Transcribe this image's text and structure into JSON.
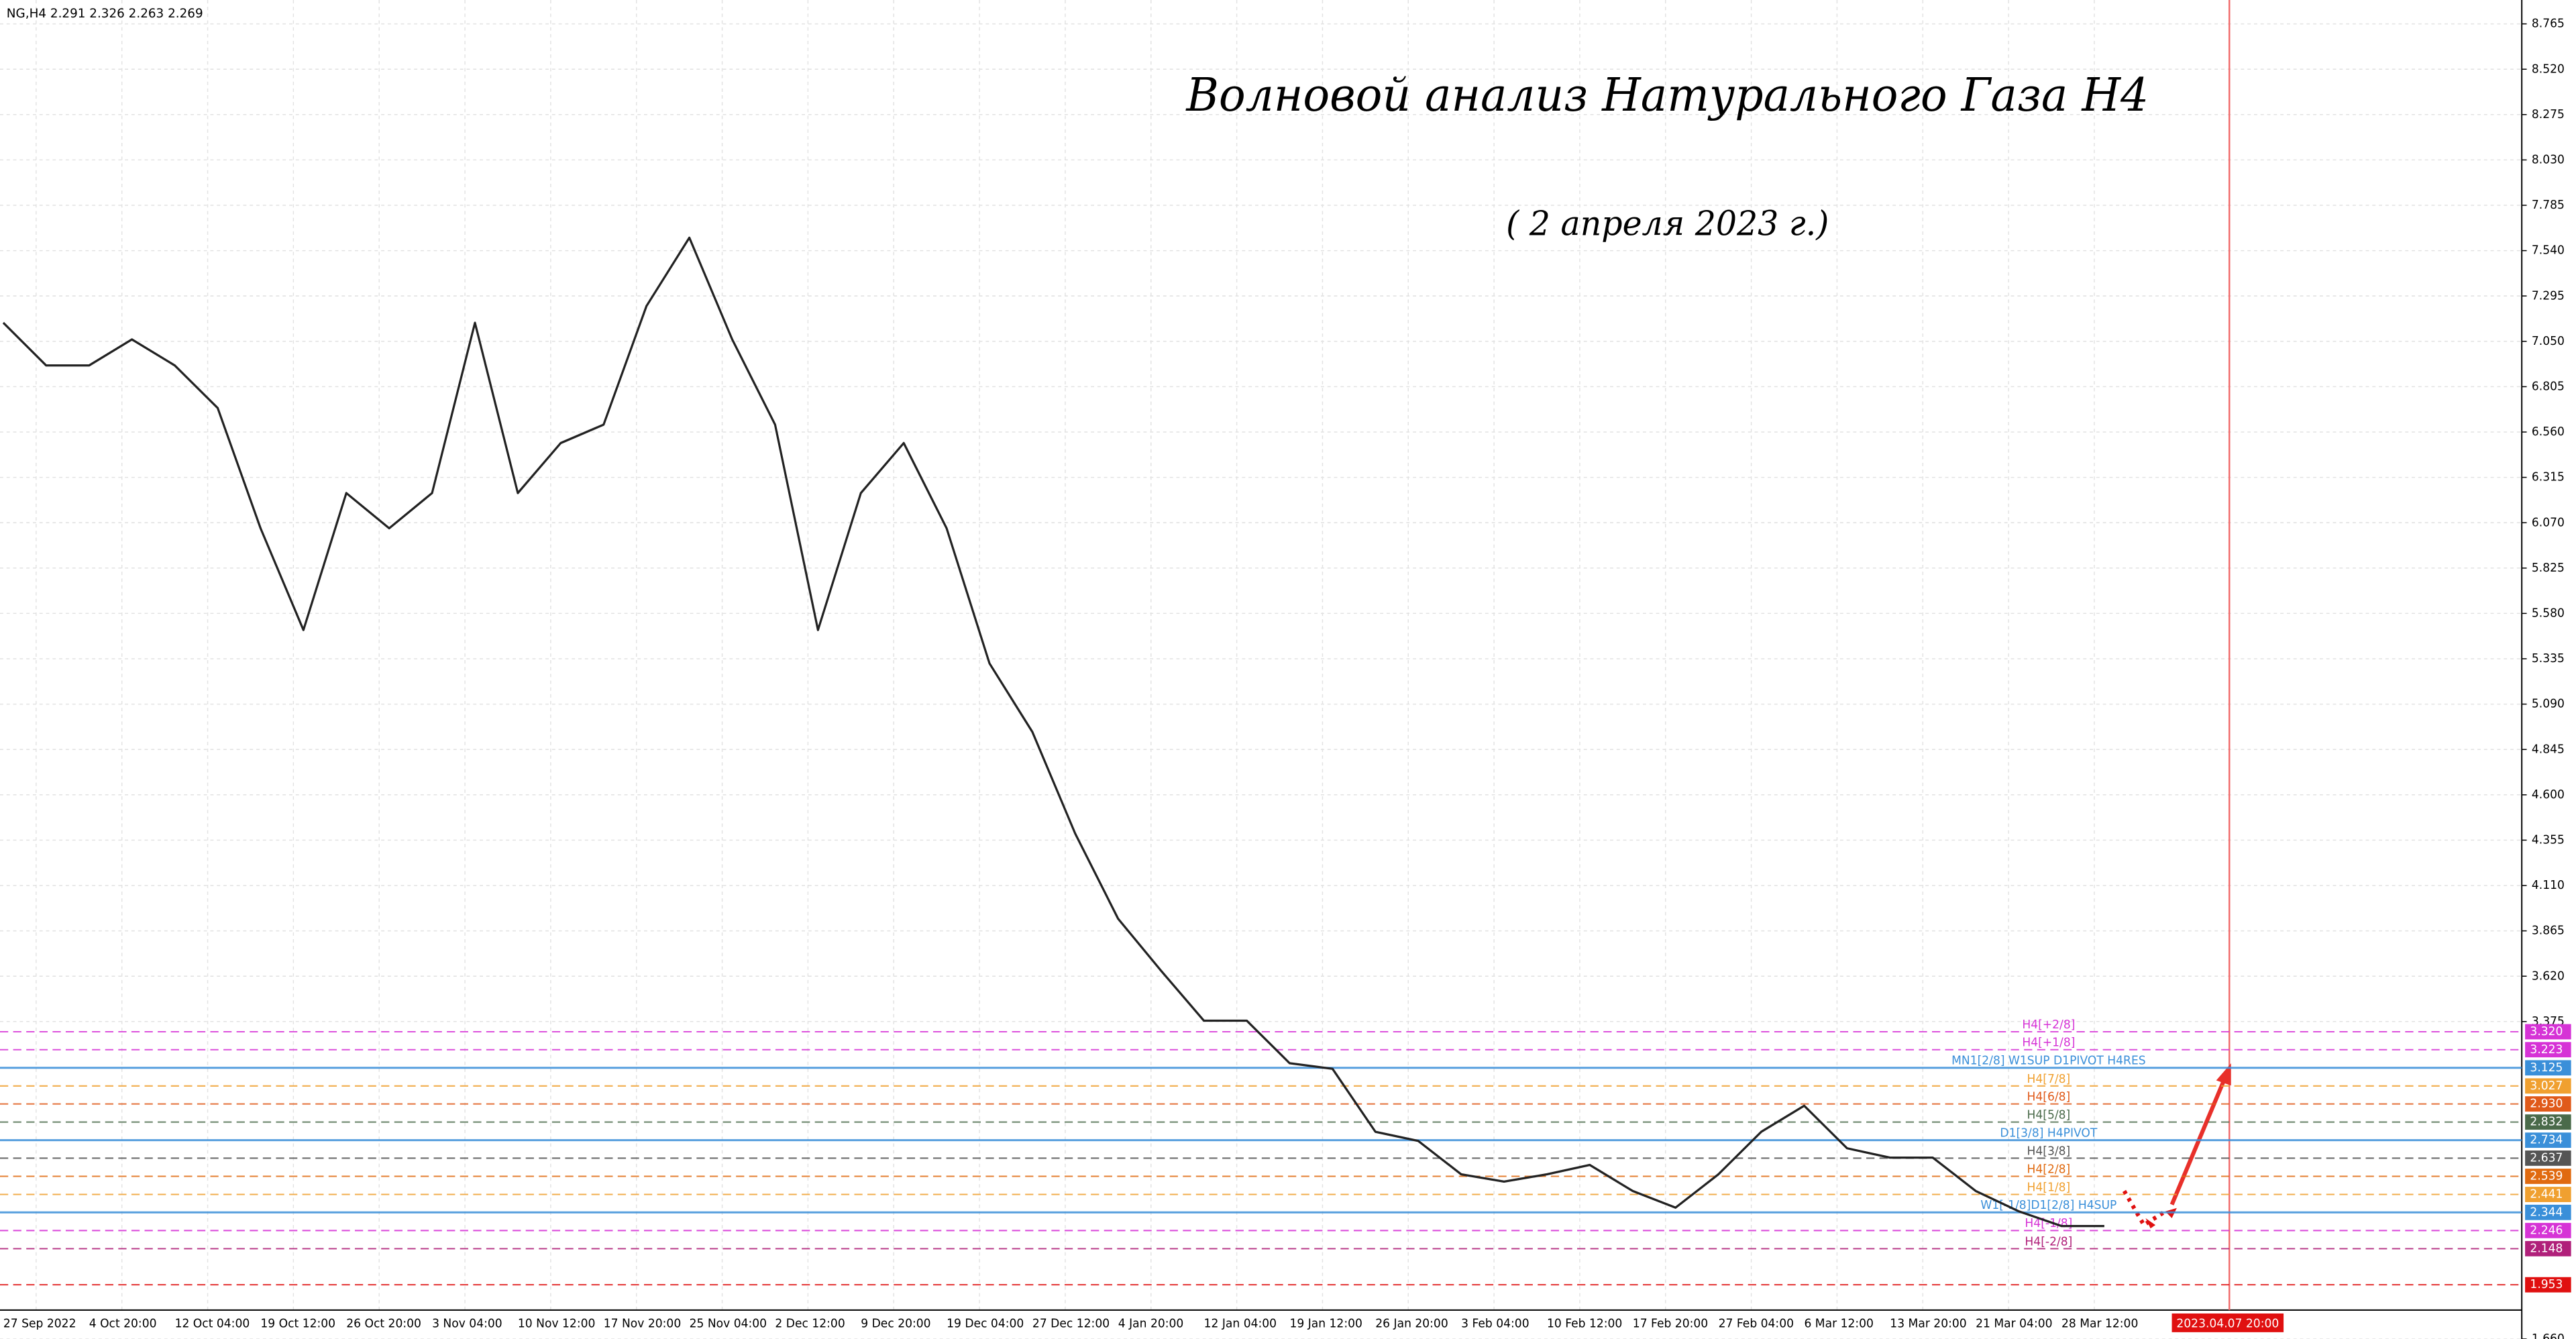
{
  "chart_data": {
    "type": "line",
    "header": "NG,H4  2.291 2.326 2.263 2.269",
    "title": "Волновой анализ Натурального Газа H4",
    "subtitle": "( 2 апреля 2023 г.)",
    "categories": [
      "27 Sep 2022",
      null,
      "4 Oct 20:00",
      null,
      "12 Oct 04:00",
      null,
      "19 Oct 12:00",
      null,
      "26 Oct 20:00",
      null,
      "3 Nov 04:00",
      null,
      "10 Nov 12:00",
      null,
      "17 Nov 20:00",
      null,
      "25 Nov 04:00",
      null,
      "2 Dec 12:00",
      null,
      "9 Dec 20:00",
      null,
      "19 Dec 04:00",
      null,
      "27 Dec 12:00",
      null,
      "4 Jan 20:00",
      null,
      "12 Jan 04:00",
      null,
      "19 Jan 12:00",
      null,
      "26 Jan 20:00",
      null,
      "3 Feb 04:00",
      null,
      "10 Feb 12:00",
      null,
      "17 Feb 20:00",
      null,
      "27 Feb 04:00",
      null,
      "6 Mar 12:00",
      null,
      "13 Mar 20:00",
      null,
      "21 Mar 04:00",
      null,
      "28 Mar 12:00",
      null
    ],
    "series": [
      {
        "color": "#222222",
        "values": [
          7.15,
          6.92,
          6.92,
          7.06,
          6.92,
          6.69,
          6.04,
          5.49,
          6.23,
          6.04,
          6.23,
          7.15,
          6.23,
          6.5,
          6.6,
          7.24,
          7.61,
          7.06,
          6.6,
          5.49,
          6.23,
          6.5,
          6.04,
          5.31,
          4.94,
          4.39,
          3.93,
          3.65,
          3.38,
          3.38,
          3.15,
          3.12,
          2.78,
          2.73,
          2.55,
          2.51,
          2.55,
          2.6,
          2.46,
          2.37,
          2.55,
          2.78,
          2.92,
          2.69,
          2.64,
          2.64,
          2.46,
          2.35,
          2.27,
          2.27
        ]
      }
    ],
    "ylim": [
      1.66,
      8.894
    ],
    "yticks": [
      8.765,
      {
        "value": 8.52,
        "label": "8.520"
      },
      8.275,
      {
        "value": 8.03,
        "label": "8.030"
      },
      7.785,
      {
        "value": 7.54,
        "label": "7.540"
      },
      7.295,
      {
        "value": 7.05,
        "label": "7.050"
      },
      6.805,
      {
        "value": 6.56,
        "label": "6.560"
      },
      6.315,
      {
        "value": 6.07,
        "label": "6.070"
      },
      5.825,
      {
        "value": 5.58,
        "label": "5.580"
      },
      5.335,
      {
        "value": 5.09,
        "label": "5.090"
      },
      4.845,
      {
        "value": 4.6,
        "label": "4.600"
      },
      4.355,
      {
        "value": 4.11,
        "label": "4.110"
      },
      3.865,
      {
        "value": 3.62,
        "label": "3.620"
      },
      3.375,
      {
        "value": 1.66,
        "label": "1.660"
      }
    ],
    "grid": true,
    "levels": [
      {
        "name": "H4[+2/8]",
        "value": 3.32,
        "label": "3.320",
        "color": "#d633d6"
      },
      {
        "name": "H4[+1/8]",
        "value": 3.223,
        "label": "3.223",
        "color": "#d633d6"
      },
      {
        "name": "MN1[2/8] W1SUP D1PIVOT H4RES",
        "value": 3.125,
        "label": "3.125",
        "color": "#3a8fd9"
      },
      {
        "name": "H4[7/8]",
        "value": 3.027,
        "label": "3.027",
        "color": "#f0a030"
      },
      {
        "name": "H4[6/8]",
        "value": 2.93,
        "label": "2.930",
        "color": "#e05a1a"
      },
      {
        "name": "H4[5/8]",
        "value": 2.832,
        "label": "2.832",
        "color": "#4a6a4a"
      },
      {
        "name": "D1[3/8] H4PIVOT",
        "value": 2.734,
        "label": "2.734",
        "color": "#3a8fd9"
      },
      {
        "name": "H4[3/8]",
        "value": 2.637,
        "label": "2.637",
        "color": "#555555"
      },
      {
        "name": "H4[2/8]",
        "value": 2.539,
        "label": "2.539",
        "color": "#e06a10"
      },
      {
        "name": "H4[1/8]",
        "value": 2.441,
        "label": "2.441",
        "color": "#f0a030"
      },
      {
        "name": "W1[-1/8]D1[2/8] H4SUP",
        "value": 2.344,
        "label": "2.344",
        "color": "#3a8fd9"
      },
      {
        "name": "H4[-1/8]",
        "value": 2.246,
        "label": "2.246",
        "color": "#d633d6"
      },
      {
        "name": "H4[-2/8]",
        "value": 2.148,
        "label": "2.148",
        "color": "#b0207a"
      },
      {
        "value": 1.953,
        "label": "1.953",
        "color": "#e01010"
      }
    ],
    "marker_date": "2023.04.07 20:00"
  }
}
